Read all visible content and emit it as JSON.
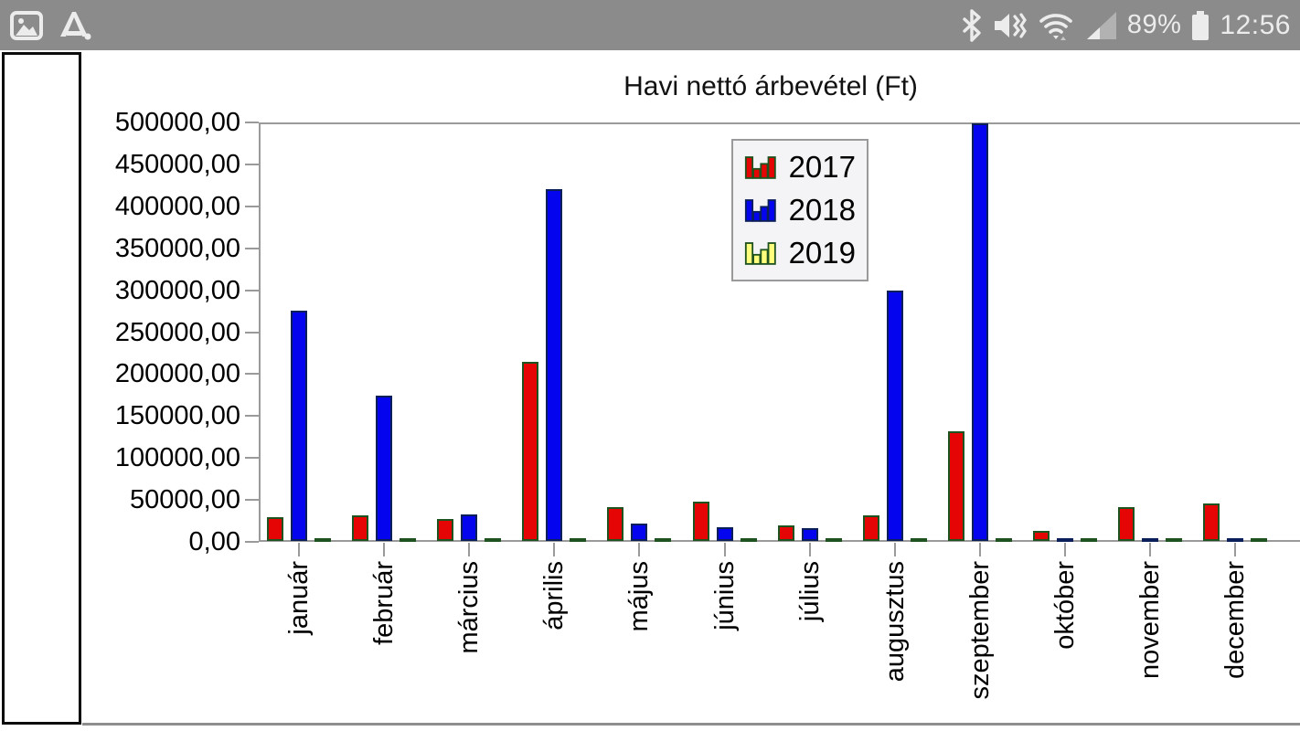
{
  "status_bar": {
    "time": "12:56",
    "battery_percent": "89%",
    "left_icons": [
      "image-notification-icon",
      "office-app-notification-icon"
    ],
    "right_icons": [
      "bluetooth-icon",
      "mute-vibrate-icon",
      "wifi-icon",
      "cell-signal-icon",
      "battery-icon"
    ],
    "bar_color": "#8b8b8b",
    "icon_color": "#ececec"
  },
  "side_panel": {
    "content": ""
  },
  "chart_data": {
    "type": "bar",
    "title": "Havi nettó árbevétel (Ft)",
    "categories": [
      "január",
      "február",
      "március",
      "április",
      "május",
      "június",
      "július",
      "augusztus",
      "szeptember",
      "október",
      "november",
      "december"
    ],
    "series": [
      {
        "name": "2017",
        "color": "#e60505",
        "border_color": "#1e521e",
        "values": [
          28000,
          31000,
          26000,
          214000,
          40000,
          47000,
          18000,
          30000,
          131000,
          11500,
          40500,
          45000
        ]
      },
      {
        "name": "2018",
        "color": "#0404ee",
        "border_color": "#0a1e5a",
        "values": [
          274500,
          173500,
          31500,
          419500,
          21000,
          16000,
          15000,
          298000,
          498000,
          1500,
          1500,
          1500
        ]
      },
      {
        "name": "2019",
        "color": "#ffff7d",
        "border_color": "#1e521e",
        "values": [
          2000,
          2000,
          2000,
          2000,
          2000,
          2000,
          2000,
          2000,
          2000,
          2000,
          2000,
          2000
        ]
      }
    ],
    "ylabel": "",
    "xlabel": "",
    "ylim": [
      0,
      500000
    ],
    "ytick_step": 50000,
    "ytick_labels": [
      "0,00",
      "50000,00",
      "100000,00",
      "150000,00",
      "200000,00",
      "250000,00",
      "300000,00",
      "350000,00",
      "400000,00",
      "450000,00",
      "500000,00"
    ],
    "grid": false,
    "legend_position": "upper-center",
    "axis_color": "#9a9a9a"
  }
}
